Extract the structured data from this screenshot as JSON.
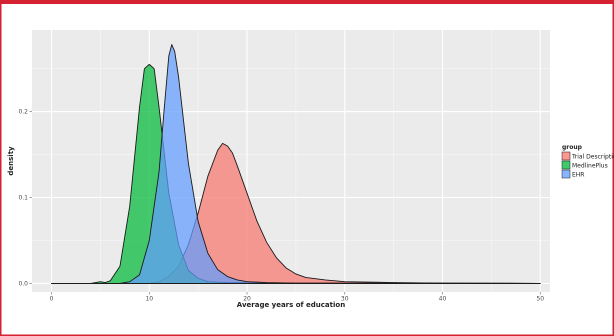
{
  "chart_data": {
    "type": "area",
    "xlabel": "Average years of education",
    "ylabel": "density",
    "xlim": [
      -2,
      51
    ],
    "ylim": [
      -0.01,
      0.295
    ],
    "x_ticks": [
      0,
      10,
      20,
      30,
      40,
      50
    ],
    "x_tick_labels": [
      "0",
      "10",
      "20",
      "30",
      "40",
      "50"
    ],
    "y_ticks": [
      0.0,
      0.1,
      0.2
    ],
    "y_tick_labels": [
      "0.0",
      "0.1",
      "0.2"
    ],
    "grid": true,
    "legend": {
      "title": "group",
      "position": "right",
      "entries": [
        "Trial Description",
        "MedlinePlus",
        "EHR"
      ]
    },
    "series": [
      {
        "name": "Trial Description",
        "color": "#F8766D",
        "points": [
          [
            0,
            0
          ],
          [
            10,
            0
          ],
          [
            11,
            0.002
          ],
          [
            12,
            0.008
          ],
          [
            13,
            0.02
          ],
          [
            14,
            0.045
          ],
          [
            15,
            0.082
          ],
          [
            16,
            0.125
          ],
          [
            17,
            0.155
          ],
          [
            17.5,
            0.163
          ],
          [
            18,
            0.16
          ],
          [
            18.5,
            0.152
          ],
          [
            19,
            0.137
          ],
          [
            20,
            0.105
          ],
          [
            21,
            0.073
          ],
          [
            22,
            0.048
          ],
          [
            23,
            0.03
          ],
          [
            24,
            0.018
          ],
          [
            25,
            0.011
          ],
          [
            26,
            0.007
          ],
          [
            28,
            0.004
          ],
          [
            30,
            0.002
          ],
          [
            35,
            0.001
          ],
          [
            40,
            0.0003
          ],
          [
            50,
            0
          ]
        ]
      },
      {
        "name": "MedlinePlus",
        "color": "#00BA38",
        "points": [
          [
            0,
            0
          ],
          [
            4,
            0
          ],
          [
            4.5,
            0.001
          ],
          [
            5,
            0.002
          ],
          [
            5.5,
            0.001
          ],
          [
            6,
            0.003
          ],
          [
            7,
            0.02
          ],
          [
            8,
            0.09
          ],
          [
            9,
            0.205
          ],
          [
            9.5,
            0.25
          ],
          [
            10,
            0.255
          ],
          [
            10.5,
            0.25
          ],
          [
            11,
            0.205
          ],
          [
            12,
            0.105
          ],
          [
            13,
            0.045
          ],
          [
            14,
            0.015
          ],
          [
            15,
            0.006
          ],
          [
            16,
            0.002
          ],
          [
            18,
            0.001
          ],
          [
            25,
            0.0003
          ],
          [
            50,
            0
          ]
        ]
      },
      {
        "name": "EHR",
        "color": "#619CFF",
        "points": [
          [
            0,
            0
          ],
          [
            7,
            0
          ],
          [
            8,
            0.002
          ],
          [
            9,
            0.01
          ],
          [
            10,
            0.05
          ],
          [
            11,
            0.13
          ],
          [
            11.5,
            0.2
          ],
          [
            12,
            0.265
          ],
          [
            12.3,
            0.278
          ],
          [
            12.6,
            0.27
          ],
          [
            13,
            0.24
          ],
          [
            14,
            0.14
          ],
          [
            15,
            0.072
          ],
          [
            16,
            0.035
          ],
          [
            17,
            0.016
          ],
          [
            18,
            0.008
          ],
          [
            19,
            0.004
          ],
          [
            20,
            0.002
          ],
          [
            22,
            0.001
          ],
          [
            25,
            0.0003
          ],
          [
            50,
            0
          ]
        ]
      }
    ]
  }
}
